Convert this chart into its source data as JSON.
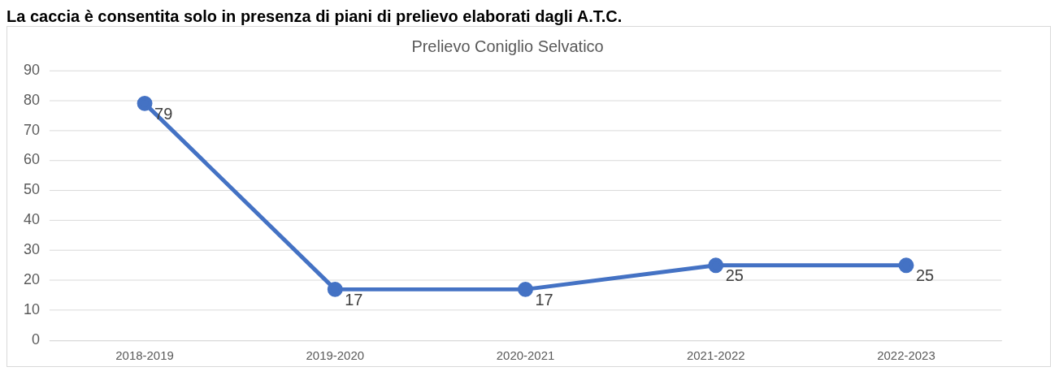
{
  "chart_data": {
    "type": "line",
    "title": "Prelievo Coniglio Selvatico",
    "annotations": [
      "La caccia è consentita solo in presenza di piani di prelievo elaborati dagli A.T.C."
    ],
    "categories": [
      "2018-2019",
      "2019-2020",
      "2020-2021",
      "2021-2022",
      "2022-2023"
    ],
    "series": [
      {
        "color": "#4472c4",
        "values": [
          79,
          17,
          17,
          25,
          25
        ]
      }
    ],
    "ylim": [
      0,
      90
    ],
    "yticks": [
      0,
      10,
      20,
      30,
      40,
      50,
      60,
      70,
      80,
      90
    ],
    "grid": "y",
    "legend": false,
    "marker": "circle",
    "line_style": "solid",
    "data_labels": true
  }
}
